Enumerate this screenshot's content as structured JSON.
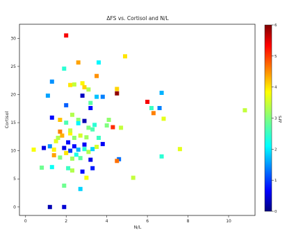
{
  "chart_data": {
    "type": "scatter",
    "title": "ΔFS vs. Cortisol and N/L",
    "xlabel": "N/L",
    "ylabel": "Cortisol",
    "xlim": [
      -0.3,
      11.3
    ],
    "ylim": [
      -1.5,
      32.5
    ],
    "xticks": [
      "0",
      "2",
      "4",
      "6",
      "8",
      "10"
    ],
    "yticks": [
      "0",
      "5",
      "10",
      "15",
      "20",
      "25",
      "30"
    ],
    "grid": false,
    "colorbar": {
      "label": "ΔFS",
      "range": [
        0,
        6
      ],
      "ticks": [
        "0",
        "1",
        "2",
        "3",
        "4",
        "5",
        "6"
      ],
      "colormap": "jet"
    },
    "series": [
      {
        "marker": "square",
        "points": [
          [
            2.0,
            30.5,
            5.3
          ],
          [
            2.6,
            25.7,
            4.3
          ],
          [
            3.6,
            25.7,
            2.2
          ],
          [
            4.9,
            26.8,
            3.9
          ],
          [
            1.9,
            24.6,
            2.5
          ],
          [
            3.5,
            23.3,
            4.4
          ],
          [
            1.3,
            22.3,
            1.6
          ],
          [
            2.2,
            21.7,
            3.9
          ],
          [
            2.4,
            21.8,
            3.4
          ],
          [
            2.8,
            22.0,
            3.8
          ],
          [
            2.9,
            21.3,
            4.0
          ],
          [
            3.1,
            20.9,
            3.3
          ],
          [
            4.5,
            21.0,
            4.0
          ],
          [
            4.5,
            20.2,
            5.9
          ],
          [
            3.8,
            19.6,
            1.5
          ],
          [
            1.1,
            19.8,
            1.7
          ],
          [
            2.8,
            19.8,
            0.4
          ],
          [
            3.5,
            19.6,
            1.9
          ],
          [
            3.2,
            18.5,
            2.8
          ],
          [
            6.0,
            18.7,
            5.3
          ],
          [
            6.2,
            17.6,
            2.6
          ],
          [
            6.7,
            20.3,
            1.8
          ],
          [
            2.0,
            18.1,
            1.3
          ],
          [
            3.2,
            17.6,
            0.8
          ],
          [
            6.6,
            17.6,
            1.5
          ],
          [
            6.3,
            16.7,
            4.5
          ],
          [
            6.8,
            15.7,
            3.6
          ],
          [
            10.8,
            17.2,
            3.4
          ],
          [
            1.3,
            15.9,
            0.8
          ],
          [
            1.7,
            15.5,
            4.1
          ],
          [
            2.0,
            15.0,
            2.7
          ],
          [
            2.3,
            16.4,
            3.3
          ],
          [
            2.6,
            15.5,
            3.1
          ],
          [
            2.9,
            15.3,
            0.3
          ],
          [
            3.4,
            14.6,
            2.5
          ],
          [
            4.0,
            14.5,
            3.0
          ],
          [
            4.3,
            14.2,
            5.0
          ],
          [
            4.7,
            14.1,
            3.4
          ],
          [
            3.1,
            14.1,
            3.0
          ],
          [
            1.7,
            13.4,
            4.5
          ],
          [
            1.8,
            12.7,
            4.2
          ],
          [
            2.2,
            13.1,
            3.8
          ],
          [
            2.4,
            12.3,
            3.1
          ],
          [
            2.7,
            12.7,
            3.5
          ],
          [
            3.0,
            12.4,
            3.2
          ],
          [
            3.6,
            12.3,
            2.6
          ],
          [
            3.8,
            11.2,
            0.7
          ],
          [
            1.5,
            11.7,
            3.6
          ],
          [
            1.2,
            10.8,
            1.6
          ],
          [
            1.4,
            10.2,
            3.8
          ],
          [
            0.9,
            10.5,
            0.6
          ],
          [
            0.4,
            10.2,
            3.7
          ],
          [
            1.9,
            10.5,
            0.6
          ],
          [
            2.1,
            11.5,
            0.8
          ],
          [
            2.2,
            10.0,
            1.1
          ],
          [
            2.4,
            10.8,
            0.8
          ],
          [
            2.6,
            10.2,
            1.8
          ],
          [
            2.9,
            10.3,
            2.5
          ],
          [
            3.1,
            9.8,
            3.3
          ],
          [
            3.3,
            10.3,
            2.0
          ],
          [
            1.4,
            9.2,
            4.3
          ],
          [
            1.7,
            8.8,
            3.0
          ],
          [
            2.3,
            8.6,
            3.2
          ],
          [
            2.7,
            8.7,
            2.8
          ],
          [
            3.2,
            8.4,
            0.6
          ],
          [
            4.6,
            8.5,
            1.4
          ],
          [
            4.5,
            8.2,
            4.6
          ],
          [
            6.7,
            9.0,
            2.5
          ],
          [
            7.6,
            10.3,
            3.6
          ],
          [
            0.8,
            7.0,
            2.9
          ],
          [
            1.3,
            7.1,
            2.3
          ],
          [
            2.1,
            6.9,
            2.6
          ],
          [
            2.3,
            6.5,
            3.3
          ],
          [
            2.8,
            6.3,
            0.8
          ],
          [
            3.3,
            6.9,
            0.9
          ],
          [
            5.3,
            5.2,
            3.4
          ],
          [
            3.0,
            5.2,
            3.7
          ],
          [
            1.9,
            3.8,
            2.9
          ],
          [
            2.7,
            3.2,
            2.0
          ],
          [
            1.2,
            0.0,
            0.3
          ],
          [
            1.9,
            0.0,
            0.5
          ],
          [
            2.2,
            13.6,
            3.4
          ],
          [
            2.6,
            14.9,
            2.2
          ],
          [
            4.1,
            15.5,
            3.1
          ],
          [
            2.9,
            11.1,
            0.7
          ],
          [
            3.3,
            13.8,
            2.7
          ],
          [
            2.5,
            9.3,
            2.4
          ],
          [
            1.6,
            12.3,
            3.3
          ],
          [
            3.5,
            10.7,
            3.5
          ],
          [
            2.0,
            9.6,
            3.9
          ]
        ]
      }
    ]
  }
}
